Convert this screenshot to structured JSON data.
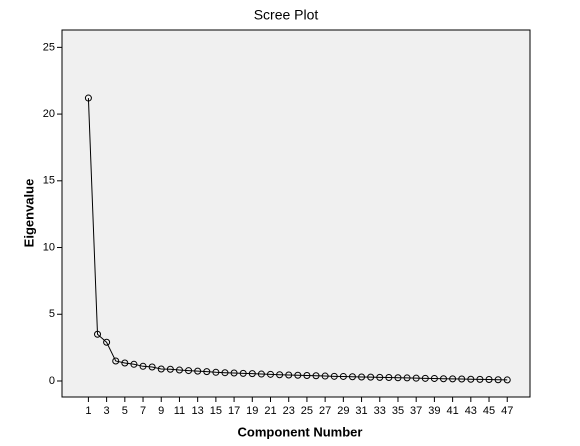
{
  "chart_data": {
    "type": "line",
    "title": "Scree Plot",
    "x_label": "Component Number",
    "y_label": "Eigenvalue",
    "x": [
      1,
      2,
      3,
      4,
      5,
      6,
      7,
      8,
      9,
      10,
      11,
      12,
      13,
      14,
      15,
      16,
      17,
      18,
      19,
      20,
      21,
      22,
      23,
      24,
      25,
      26,
      27,
      28,
      29,
      30,
      31,
      32,
      33,
      34,
      35,
      36,
      37,
      38,
      39,
      40,
      41,
      42,
      43,
      44,
      45,
      46,
      47
    ],
    "series": [
      {
        "color": "#000000",
        "values": [
          21.2,
          3.5,
          2.9,
          1.5,
          1.35,
          1.25,
          1.1,
          1.05,
          0.9,
          0.88,
          0.82,
          0.78,
          0.74,
          0.7,
          0.65,
          0.62,
          0.6,
          0.57,
          0.55,
          0.52,
          0.5,
          0.47,
          0.45,
          0.43,
          0.41,
          0.39,
          0.37,
          0.35,
          0.34,
          0.32,
          0.3,
          0.29,
          0.27,
          0.26,
          0.24,
          0.23,
          0.21,
          0.2,
          0.19,
          0.17,
          0.16,
          0.15,
          0.13,
          0.12,
          0.11,
          0.09,
          0.08
        ]
      }
    ],
    "xlim": [
      -1.9,
      49.5
    ],
    "xticks": [
      1,
      3,
      5,
      7,
      9,
      11,
      13,
      15,
      17,
      19,
      21,
      23,
      25,
      27,
      29,
      31,
      33,
      35,
      37,
      39,
      41,
      43,
      45,
      47
    ],
    "ylim": [
      -1.2,
      26.3
    ],
    "yticks": [
      0,
      5,
      10,
      15,
      20,
      25
    ]
  }
}
